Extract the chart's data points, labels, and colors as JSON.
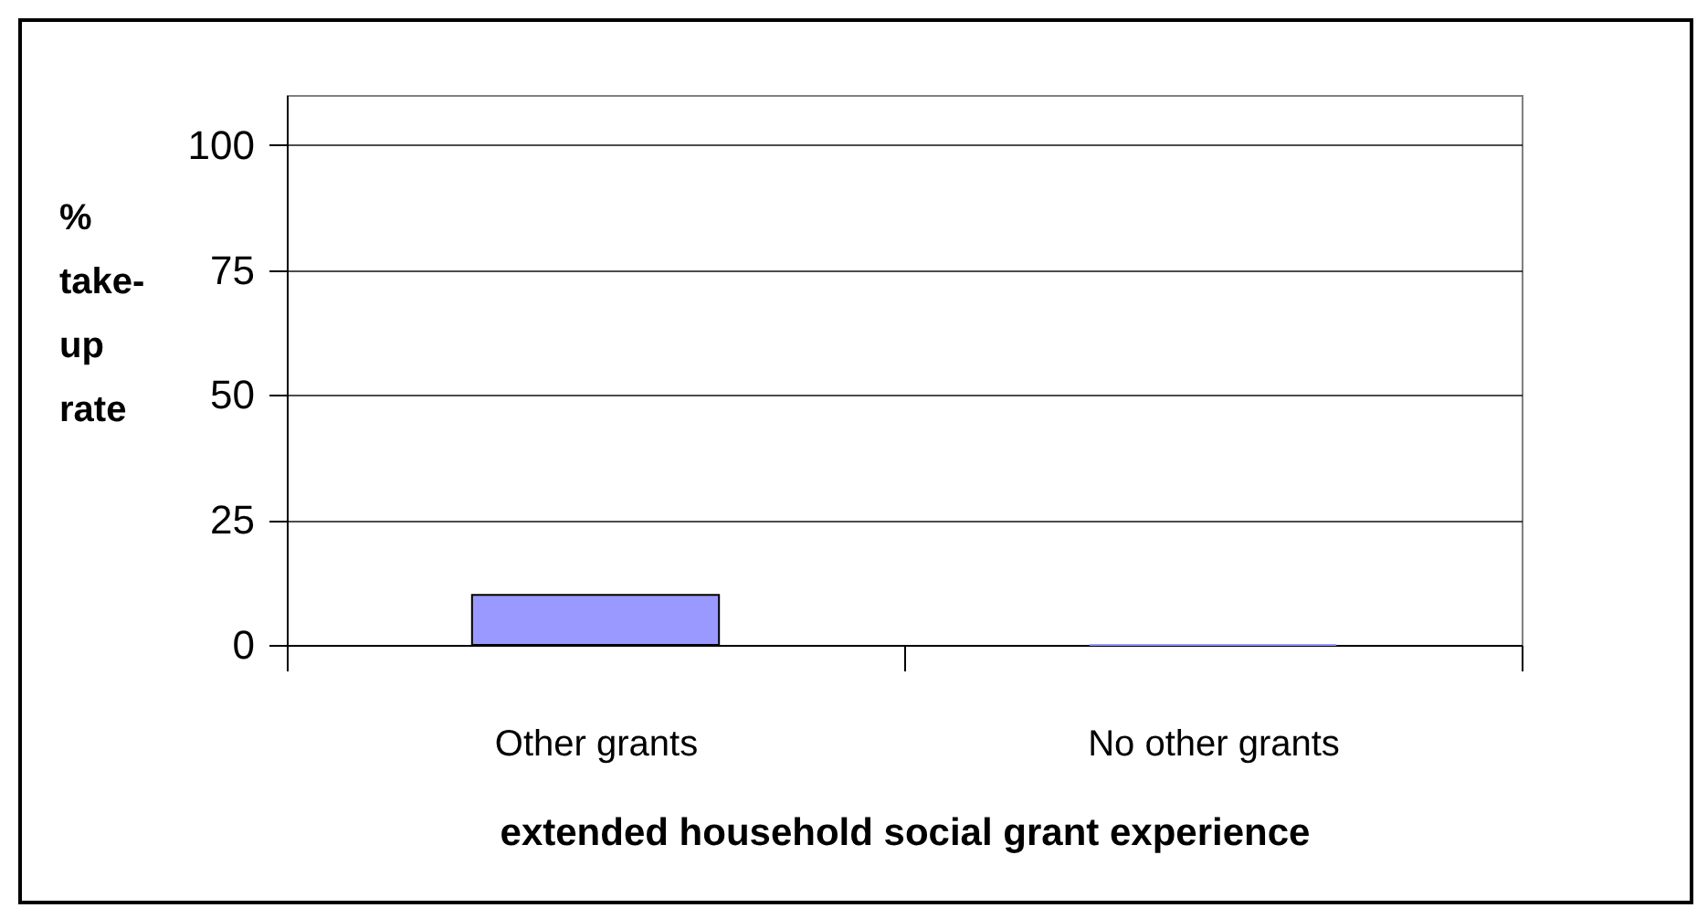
{
  "chart_data": {
    "type": "bar",
    "xlabel": "extended household social grant experience",
    "ylabel": "% take-up rate",
    "categories": [
      "Other grants",
      "No other grants"
    ],
    "values": [
      10,
      0
    ],
    "color": "#9999ff",
    "ylim": [
      0,
      110
    ],
    "yticks": [
      0,
      25,
      50,
      75,
      100
    ],
    "grid": "y"
  }
}
